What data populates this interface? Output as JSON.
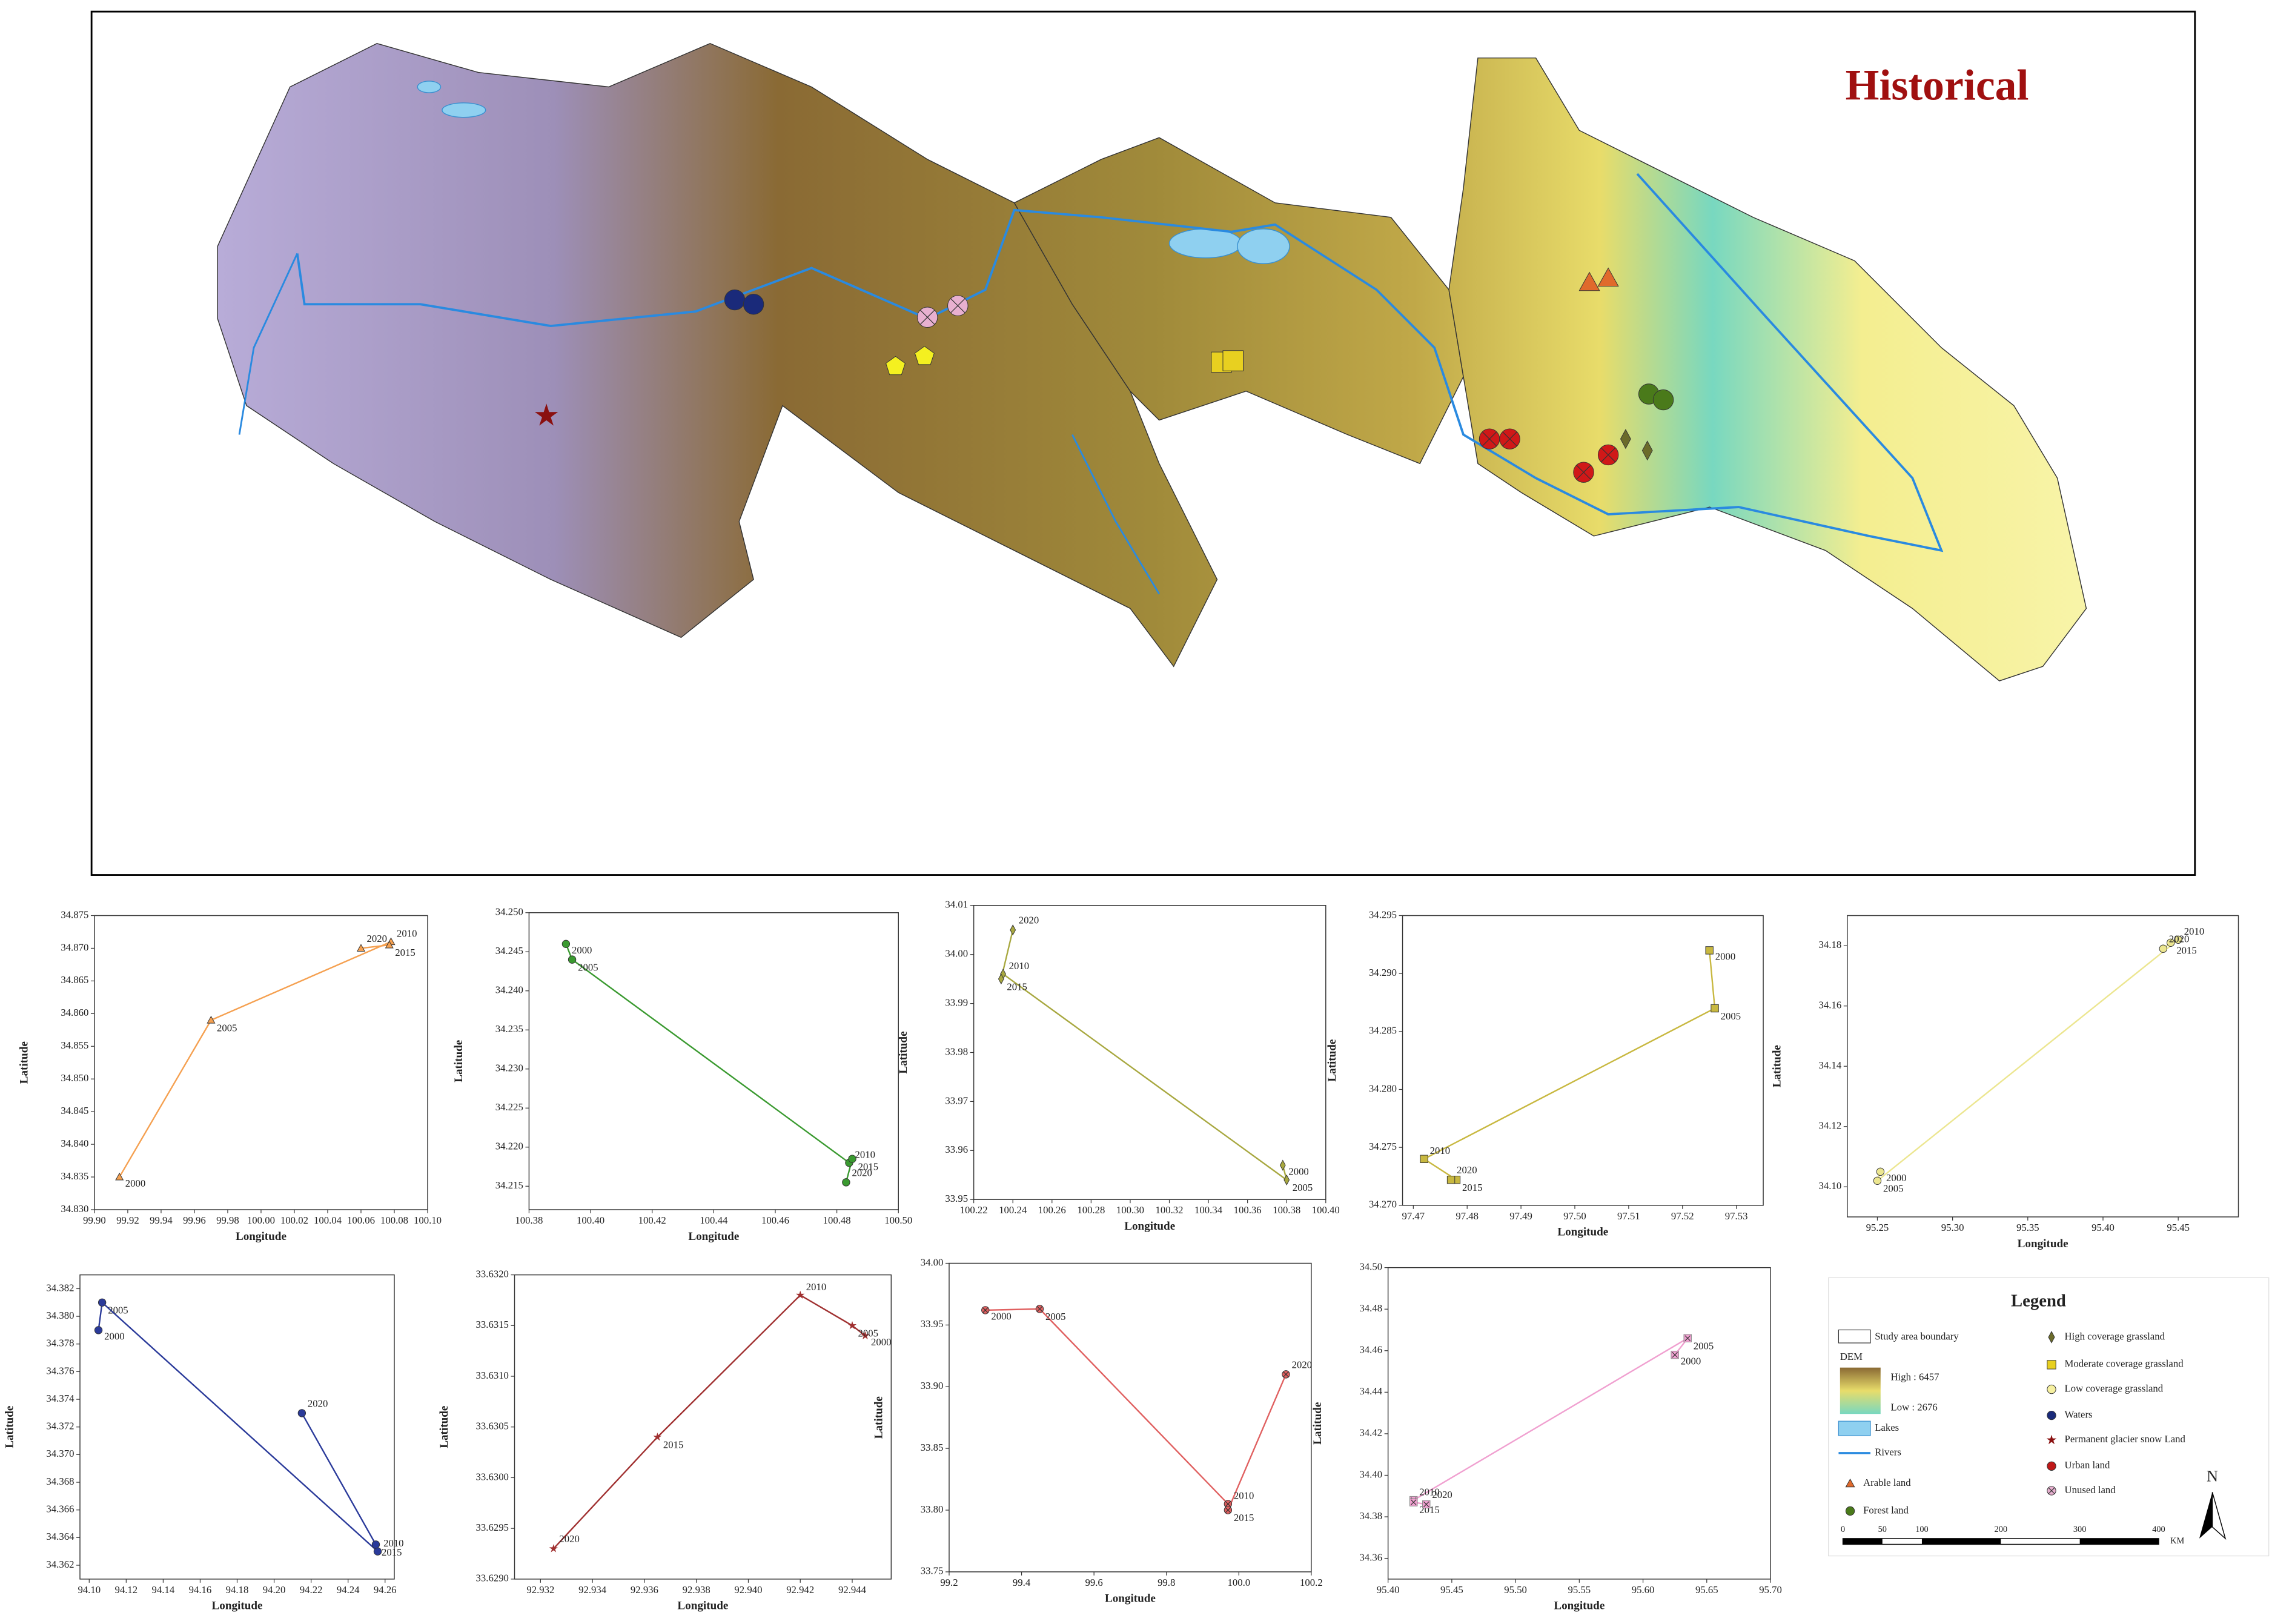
{
  "map": {
    "title": "Historical"
  },
  "legend": {
    "title": "Legend",
    "boundary": "Study area boundary",
    "dem": "DEM",
    "dem_high": "High : 6457",
    "dem_low": "Low : 2676",
    "lakes": "Lakes",
    "rivers": "Rivers",
    "land_types": [
      "Arable land",
      "Forest land",
      "High coverage grassland",
      "Moderate coverage grassland",
      "Low coverage grassland",
      "Waters",
      "Permanent glacier snow Land",
      "Urban land",
      "Unused land"
    ],
    "scale_labels": [
      0,
      50,
      100,
      200,
      300,
      400
    ],
    "scale_unit": "KM",
    "north": "N"
  },
  "chart_data": [
    {
      "type": "line",
      "xlabel": "Longitude",
      "ylabel": "Latitude",
      "color": "#f5a050",
      "marker": "triangle",
      "x": [
        99.915,
        99.97,
        100.078,
        100.077,
        100.06
      ],
      "values": [
        34.835,
        34.859,
        34.871,
        34.8705,
        34.87
      ],
      "point_labels": [
        "2000",
        "2005",
        "2010",
        "2015",
        "2020"
      ],
      "xlim": [
        99.9,
        100.1
      ],
      "ylim": [
        34.83,
        34.875
      ],
      "xticks": [
        {
          "value": 99.9,
          "label": "99.90"
        },
        99.92,
        99.94,
        99.96,
        99.98,
        {
          "value": 100,
          "label": "100.00"
        },
        100.02,
        100.04,
        100.06,
        100.08,
        {
          "value": 100.1,
          "label": "100.10"
        }
      ],
      "yticks": [
        {
          "value": 34.83,
          "label": "34.830"
        },
        34.835,
        {
          "value": 34.84,
          "label": "34.840"
        },
        34.845,
        {
          "value": 34.85,
          "label": "34.850"
        },
        34.855,
        {
          "value": 34.86,
          "label": "34.860"
        },
        34.865,
        {
          "value": 34.87,
          "label": "34.870"
        },
        34.875
      ]
    },
    {
      "type": "line",
      "xlabel": "Longitude",
      "ylabel": "Latitude",
      "color": "#3a9a30",
      "marker": "circle",
      "x": [
        100.392,
        100.394,
        100.484,
        100.485,
        100.483
      ],
      "values": [
        34.246,
        34.244,
        34.218,
        34.2185,
        34.2155
      ],
      "point_labels": [
        "2000",
        "2005",
        "2010",
        "2015",
        "2020"
      ],
      "xlim": [
        100.38,
        100.5
      ],
      "ylim": [
        34.212,
        34.25
      ],
      "xticks": [
        100.38,
        {
          "value": 100.4,
          "label": "100.40"
        },
        100.42,
        100.44,
        100.46,
        100.48,
        {
          "value": 100.5,
          "label": "100.50"
        }
      ],
      "yticks": [
        34.215,
        {
          "value": 34.22,
          "label": "34.220"
        },
        34.225,
        {
          "value": 34.23,
          "label": "34.230"
        },
        34.235,
        {
          "value": 34.24,
          "label": "34.240"
        },
        34.245,
        {
          "value": 34.25,
          "label": "34.250"
        }
      ]
    },
    {
      "type": "line",
      "xlabel": "Longitude",
      "ylabel": "Latitude",
      "color": "#a8a840",
      "marker": "diamond",
      "x": [
        100.378,
        100.38,
        100.235,
        100.234,
        100.24
      ],
      "values": [
        33.957,
        33.954,
        33.996,
        33.995,
        34.005
      ],
      "point_labels": [
        "2000",
        "2005",
        "2010",
        "2015",
        "2020"
      ],
      "xlim": [
        100.22,
        100.4
      ],
      "ylim": [
        33.95,
        34.01
      ],
      "xticks": [
        100.22,
        100.24,
        100.26,
        100.28,
        {
          "value": 100.3,
          "label": "100.30"
        },
        100.32,
        100.34,
        100.36,
        100.38,
        {
          "value": 100.4,
          "label": "100.40"
        }
      ],
      "yticks": [
        33.95,
        33.96,
        33.97,
        33.98,
        33.99,
        {
          "value": 34,
          "label": "34.00"
        },
        34.01
      ]
    },
    {
      "type": "line",
      "xlabel": "Longitude",
      "ylabel": "Latitude",
      "color": "#c8b840",
      "marker": "square",
      "x": [
        97.525,
        97.526,
        97.472,
        97.478,
        97.477
      ],
      "values": [
        34.292,
        34.287,
        34.274,
        34.2722,
        34.2722
      ],
      "point_labels": [
        "2000",
        "2005",
        "2010",
        "2015",
        "2020"
      ],
      "xlim": [
        97.468,
        97.535
      ],
      "ylim": [
        34.27,
        34.295
      ],
      "xticks": [
        97.47,
        97.48,
        97.49,
        {
          "value": 97.5,
          "label": "97.50"
        },
        97.51,
        97.52,
        97.53
      ],
      "yticks": [
        {
          "value": 34.27,
          "label": "34.270"
        },
        34.275,
        {
          "value": 34.28,
          "label": "34.280"
        },
        34.285,
        {
          "value": 34.29,
          "label": "34.290"
        },
        34.295
      ]
    },
    {
      "type": "line",
      "xlabel": "Longitude",
      "ylabel": "Latitude",
      "color": "#ece690",
      "marker": "circle",
      "x": [
        95.252,
        95.25,
        95.45,
        95.445,
        95.44
      ],
      "values": [
        34.105,
        34.102,
        34.182,
        34.181,
        34.179
      ],
      "point_labels": [
        "2000",
        "2005",
        "2010",
        "2015",
        "2020"
      ],
      "xlim": [
        95.23,
        95.49
      ],
      "ylim": [
        34.09,
        34.19
      ],
      "xticks": [
        95.25,
        {
          "value": 95.3,
          "label": "95.30"
        },
        95.35,
        {
          "value": 95.4,
          "label": "95.40"
        },
        95.45
      ],
      "yticks": [
        {
          "value": 34.1,
          "label": "34.10"
        },
        34.12,
        34.14,
        34.16,
        34.18
      ]
    },
    {
      "type": "line",
      "xlabel": "Longitude",
      "ylabel": "Latitude",
      "color": "#2a3a9a",
      "marker": "circle",
      "x": [
        94.105,
        94.107,
        94.256,
        94.255,
        94.215
      ],
      "values": [
        34.379,
        34.381,
        34.363,
        34.3635,
        34.373
      ],
      "point_labels": [
        "2000",
        "2005",
        "2010",
        "2015",
        "2020"
      ],
      "xlim": [
        94.095,
        94.265
      ],
      "ylim": [
        34.361,
        34.383
      ],
      "xticks": [
        {
          "value": 94.1,
          "label": "94.10"
        },
        94.12,
        94.14,
        94.16,
        94.18,
        {
          "value": 94.2,
          "label": "94.20"
        },
        94.22,
        94.24,
        94.26
      ],
      "yticks": [
        34.362,
        34.364,
        34.366,
        34.368,
        {
          "value": 34.37,
          "label": "34.370"
        },
        34.372,
        34.374,
        34.376,
        34.378,
        {
          "value": 34.38,
          "label": "34.380"
        },
        34.382
      ]
    },
    {
      "type": "line",
      "xlabel": "Longitude",
      "ylabel": "Latitude",
      "color": "#a03030",
      "marker": "star",
      "x": [
        92.9445,
        92.944,
        92.942,
        92.9365,
        92.9325
      ],
      "values": [
        33.6314,
        33.6315,
        33.6318,
        33.6304,
        33.6293
      ],
      "point_labels": [
        "2000",
        "2005",
        "2010",
        "2015",
        "2020"
      ],
      "xlim": [
        92.931,
        92.9455
      ],
      "ylim": [
        33.629,
        33.632
      ],
      "xticks": [
        92.932,
        92.934,
        92.936,
        92.938,
        {
          "value": 92.94,
          "label": "92.940"
        },
        92.942,
        92.944
      ],
      "yticks": [
        {
          "value": 33.629,
          "label": "33.6290"
        },
        33.6295,
        {
          "value": 33.63,
          "label": "33.6300"
        },
        33.6305,
        {
          "value": 33.631,
          "label": "33.6310"
        },
        33.6315,
        {
          "value": 33.632,
          "label": "33.6320"
        }
      ]
    },
    {
      "type": "line",
      "xlabel": "Longitude",
      "ylabel": "Latitude",
      "color": "#e06060",
      "marker": "crossed-circle",
      "x": [
        99.3,
        99.45,
        99.97,
        99.97,
        100.13
      ],
      "values": [
        33.962,
        33.963,
        33.805,
        33.8,
        33.91
      ],
      "point_labels": [
        "2000",
        "2005",
        "2010",
        "2015",
        "2020"
      ],
      "xlim": [
        99.2,
        100.2
      ],
      "ylim": [
        33.75,
        34.0
      ],
      "xticks": [
        99.2,
        99.4,
        99.6,
        99.8,
        {
          "value": 100,
          "label": "100.0"
        },
        100.2
      ],
      "yticks": [
        33.75,
        {
          "value": 33.8,
          "label": "33.80"
        },
        33.85,
        {
          "value": 33.9,
          "label": "33.90"
        },
        33.95,
        {
          "value": 34,
          "label": "34.00"
        }
      ]
    },
    {
      "type": "line",
      "xlabel": "Longitude",
      "ylabel": "Latitude",
      "color": "#f0a0d0",
      "marker": "crossed-square",
      "x": [
        95.625,
        95.635,
        95.42,
        95.42,
        95.43
      ],
      "values": [
        34.458,
        34.466,
        34.388,
        34.387,
        34.386
      ],
      "point_labels": [
        "2000",
        "2005",
        "2010",
        "2015",
        "2020"
      ],
      "xlim": [
        95.4,
        95.7
      ],
      "ylim": [
        34.35,
        34.5
      ],
      "xticks": [
        {
          "value": 95.4,
          "label": "95.40"
        },
        95.45,
        {
          "value": 95.5,
          "label": "95.50"
        },
        95.55,
        {
          "value": 95.6,
          "label": "95.60"
        },
        95.65,
        {
          "value": 95.7,
          "label": "95.70"
        }
      ],
      "yticks": [
        34.36,
        34.38,
        {
          "value": 34.4,
          "label": "34.40"
        },
        34.42,
        34.44,
        34.46,
        34.48,
        {
          "value": 34.5,
          "label": "34.50"
        }
      ]
    }
  ]
}
